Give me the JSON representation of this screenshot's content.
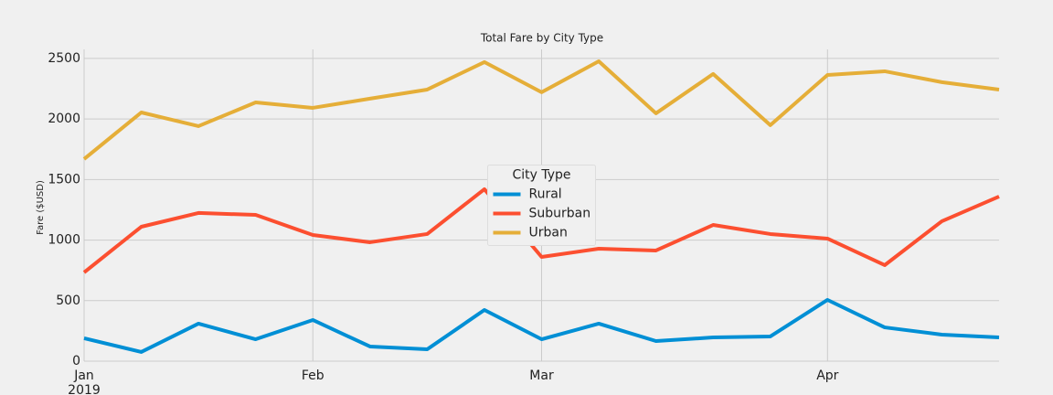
{
  "chart_data": {
    "type": "line",
    "title": "Total Fare by City Type",
    "y_label": "Fare ($USD)",
    "categories": [
      "Jan\n2019",
      null,
      null,
      null,
      "Feb",
      null,
      null,
      null,
      "Mar",
      null,
      null,
      null,
      null,
      "Apr",
      null,
      null,
      null
    ],
    "series": [
      {
        "name": "Rural",
        "color": "#008fd5",
        "values": [
          189,
          76,
          310,
          181,
          340,
          121,
          98,
          423,
          181,
          310,
          166,
          196,
          204,
          506,
          279,
          219,
          196
        ]
      },
      {
        "name": "Suburban",
        "color": "#fc4f30",
        "values": [
          733,
          1110,
          1224,
          1208,
          1042,
          982,
          1050,
          1420,
          861,
          929,
          914,
          1125,
          1050,
          1012,
          793,
          1156,
          1360
        ]
      },
      {
        "name": "Urban",
        "color": "#e5ae38",
        "values": [
          1669,
          2054,
          1941,
          2137,
          2092,
          2168,
          2243,
          2470,
          2221,
          2477,
          2047,
          2372,
          1949,
          2364,
          2394,
          2304,
          2243
        ]
      }
    ],
    "legend_title": "City Type",
    "legend_position": "center",
    "ylim": [
      0,
      2575
    ],
    "yticks": [
      0,
      500,
      1000,
      1500,
      2000,
      2500
    ],
    "grid": true
  }
}
